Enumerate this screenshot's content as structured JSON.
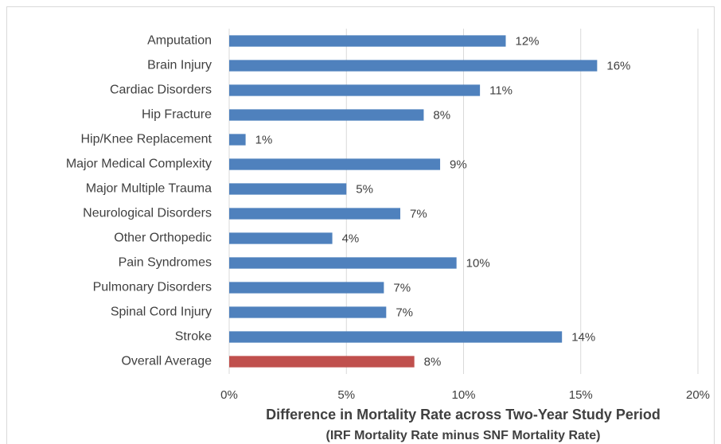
{
  "chart_data": {
    "type": "hbar",
    "x_label": "Difference in Mortality Rate across Two-Year Study Period",
    "x_sublabel": "(IRF Mortality Rate minus SNF Mortality Rate)",
    "categories": [
      "Amputation",
      "Brain Injury",
      "Cardiac Disorders",
      "Hip Fracture",
      "Hip/Knee Replacement",
      "Major Medical Complexity",
      "Major Multiple Trauma",
      "Neurological Disorders",
      "Other Orthopedic",
      "Pain Syndromes",
      "Pulmonary Disorders",
      "Spinal Cord Injury",
      "Stroke",
      "Overall Average"
    ],
    "values": [
      11.8,
      15.7,
      10.7,
      8.3,
      0.7,
      9.0,
      5.0,
      7.3,
      4.4,
      9.7,
      6.6,
      6.7,
      14.2,
      7.9
    ],
    "value_labels": [
      "12%",
      "16%",
      "11%",
      "8%",
      "1%",
      "9%",
      "5%",
      "7%",
      "4%",
      "10%",
      "7%",
      "7%",
      "14%",
      "8%"
    ],
    "colors": [
      "#4f81bd",
      "#4f81bd",
      "#4f81bd",
      "#4f81bd",
      "#4f81bd",
      "#4f81bd",
      "#4f81bd",
      "#4f81bd",
      "#4f81bd",
      "#4f81bd",
      "#4f81bd",
      "#4f81bd",
      "#4f81bd",
      "#c0504d"
    ],
    "xlim": [
      0,
      20
    ],
    "xticks": [
      {
        "value": 0,
        "label": "0%"
      },
      {
        "value": 5,
        "label": "5%"
      },
      {
        "value": 10,
        "label": "10%"
      },
      {
        "value": 15,
        "label": "15%"
      },
      {
        "value": 20,
        "label": "20%"
      }
    ],
    "grid": true
  }
}
